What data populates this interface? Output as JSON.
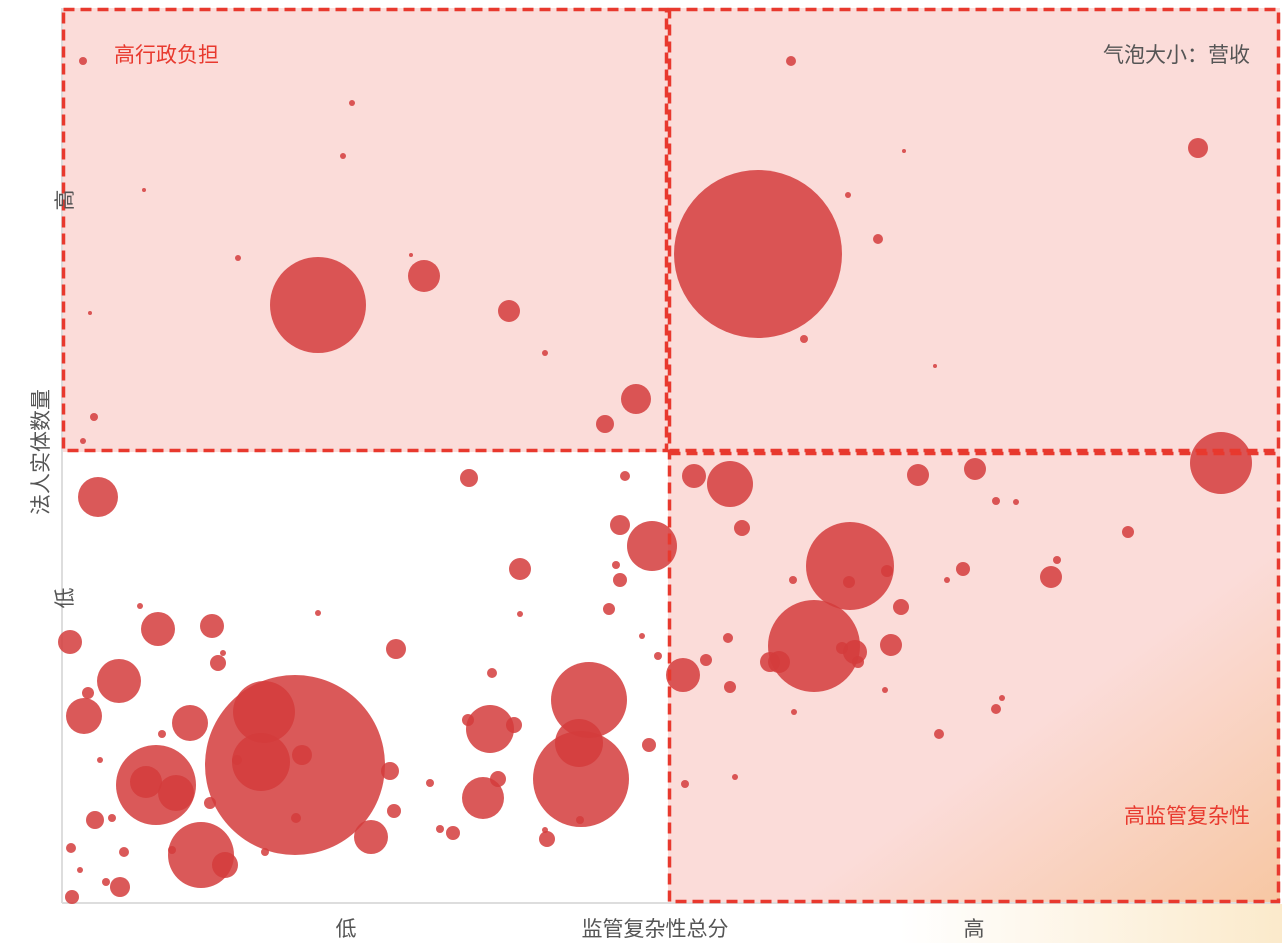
{
  "chart_data": {
    "type": "bubble",
    "x_label": "监管复杂性总分",
    "y_label": "法人实体数量",
    "xlim": [
      0,
      1218
    ],
    "ylim": [
      0,
      895
    ],
    "xticks": [
      {
        "value": 284,
        "label": "低"
      },
      {
        "value": 912,
        "label": "高"
      }
    ],
    "yticks": [
      {
        "value": 305,
        "label": "低"
      },
      {
        "value": 703,
        "label": "高"
      }
    ],
    "quadrant_x": 606,
    "quadrant_y": 451,
    "annotations": [
      "高行政负担",
      "气泡大小：营收",
      "高监管复杂性"
    ],
    "series": [
      {
        "color": "#d43c3c",
        "x": [
          21,
          290,
          281,
          82,
          176,
          256,
          362,
          447,
          483,
          28,
          32,
          21,
          574,
          543,
          349,
          729,
          1136,
          842,
          786,
          816,
          696,
          742,
          873,
          1159,
          632,
          668,
          680,
          856,
          913,
          934,
          954,
          1066,
          788,
          752,
          825,
          901,
          989,
          995,
          885,
          839,
          829,
          793,
          796,
          780,
          717,
          708,
          666,
          644,
          621,
          668,
          732,
          823,
          934,
          940,
          877,
          673,
          623,
          787,
          731,
          36,
          407,
          563,
          558,
          590,
          458,
          554,
          558,
          547,
          8,
          96,
          150,
          156,
          57,
          22,
          26,
          128,
          202,
          233,
          199,
          94,
          114,
          84,
          139,
          163,
          309,
          334,
          240,
          328,
          428,
          452,
          421,
          436,
          406,
          527,
          519,
          517,
          485,
          391,
          332,
          58,
          33,
          9,
          10,
          44,
          62,
          50,
          430,
          587,
          458,
          580,
          596,
          256,
          100,
          161,
          175,
          148,
          203,
          234,
          368,
          378,
          483,
          518,
          110,
          38,
          78,
          18
        ],
        "y": [
          842,
          800,
          747,
          713,
          645,
          598,
          627,
          592,
          550,
          590,
          486,
          462,
          504,
          479,
          648,
          842,
          755,
          752,
          708,
          664,
          649,
          564,
          537,
          440,
          427,
          419,
          375,
          428,
          434,
          402,
          401,
          371,
          337,
          257,
          332,
          334,
          326,
          343,
          323,
          296,
          258,
          251,
          241,
          255,
          241,
          241,
          265,
          243,
          228,
          216,
          191,
          213,
          194,
          205,
          169,
          126,
          119,
          321,
          323,
          406,
          425,
          427,
          378,
          357,
          334,
          338,
          323,
          294,
          261,
          274,
          277,
          240,
          222,
          187,
          210,
          180,
          191,
          138,
          141,
          118,
          110,
          121,
          48,
          38,
          66,
          254,
          148,
          132,
          174,
          178,
          105,
          124,
          183,
          203,
          124,
          160,
          64,
          70,
          92,
          16,
          83,
          55,
          6,
          21,
          51,
          85,
          230,
          158,
          289,
          267,
          247,
          290,
          169,
          250,
          143,
          100,
          51,
          85,
          120,
          74,
          73,
          83,
          53,
          143,
          297,
          33
        ],
        "size": [
          16,
          9,
          9,
          4,
          9,
          2304,
          256,
          121,
          9,
          4,
          16,
          9,
          225,
          81,
          4,
          25,
          100,
          4,
          9,
          25,
          7056,
          16,
          4,
          961,
          144,
          529,
          64,
          121,
          121,
          16,
          9,
          36,
          1936,
          2116,
          36,
          49,
          121,
          16,
          9,
          64,
          121,
          144,
          36,
          36,
          121,
          100,
          25,
          36,
          289,
          36,
          9,
          9,
          25,
          9,
          25,
          9,
          16,
          36,
          16,
          400,
          81,
          25,
          100,
          625,
          121,
          16,
          49,
          36,
          144,
          289,
          144,
          64,
          484,
          324,
          36,
          324,
          961,
          8100,
          841,
          1600,
          324,
          256,
          1089,
          169,
          289,
          100,
          100,
          81,
          576,
          64,
          441,
          64,
          36,
          1444,
          2304,
          576,
          64,
          49,
          49,
          100,
          81,
          25,
          49,
          16,
          25,
          16,
          25,
          49,
          9,
          9,
          16,
          9,
          16,
          9,
          25,
          36,
          16,
          25,
          16,
          16,
          9,
          16,
          16,
          9,
          9,
          9
        ]
      }
    ]
  }
}
